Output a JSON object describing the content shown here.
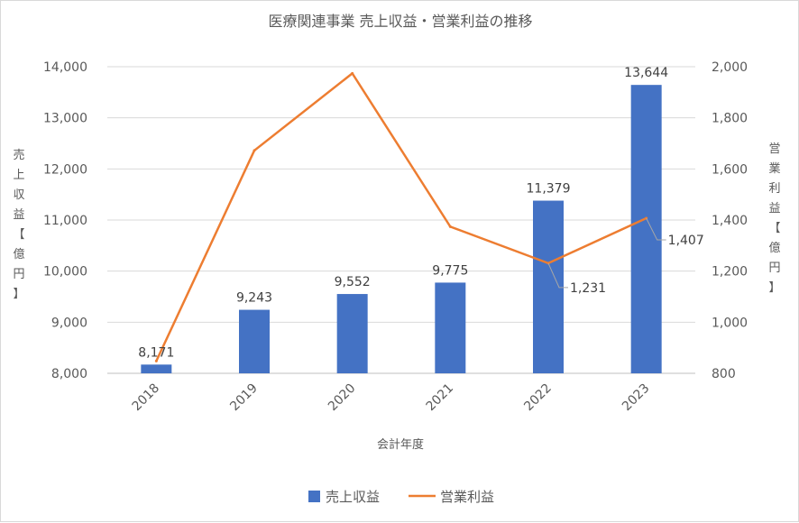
{
  "chart_data": {
    "type": "bar",
    "title": "医療関連事業 売上収益・営業利益の推移",
    "xlabel": "会計年度",
    "ylabel_left": "売上収益【億円】",
    "ylabel_right": "営業利益【億円】",
    "categories": [
      "2018",
      "2019",
      "2020",
      "2021",
      "2022",
      "2023"
    ],
    "y_left": {
      "min": 8000,
      "max": 14000,
      "ticks": [
        "8,000",
        "9,000",
        "10,000",
        "11,000",
        "12,000",
        "13,000",
        "14,000"
      ]
    },
    "y_right": {
      "min": 800,
      "max": 2000,
      "ticks": [
        "800",
        "1,000",
        "1,200",
        "1,400",
        "1,600",
        "1,800",
        "2,000"
      ]
    },
    "series": [
      {
        "name": "売上収益",
        "kind": "bar",
        "axis": "left",
        "color": "#4472C4",
        "values": [
          8171,
          9243,
          9552,
          9775,
          11379,
          13644
        ],
        "labels": [
          "8,171",
          "9,243",
          "9,552",
          "9,775",
          "11,379",
          "13,644"
        ]
      },
      {
        "name": "営業利益",
        "kind": "line",
        "axis": "right",
        "color": "#ED7D31",
        "values": [
          848,
          1672,
          1974,
          1374,
          1231,
          1407
        ],
        "labels": [
          "",
          "",
          "",
          "",
          "1,231",
          "1,407"
        ]
      }
    ],
    "grid": true,
    "legend": "bottom"
  }
}
